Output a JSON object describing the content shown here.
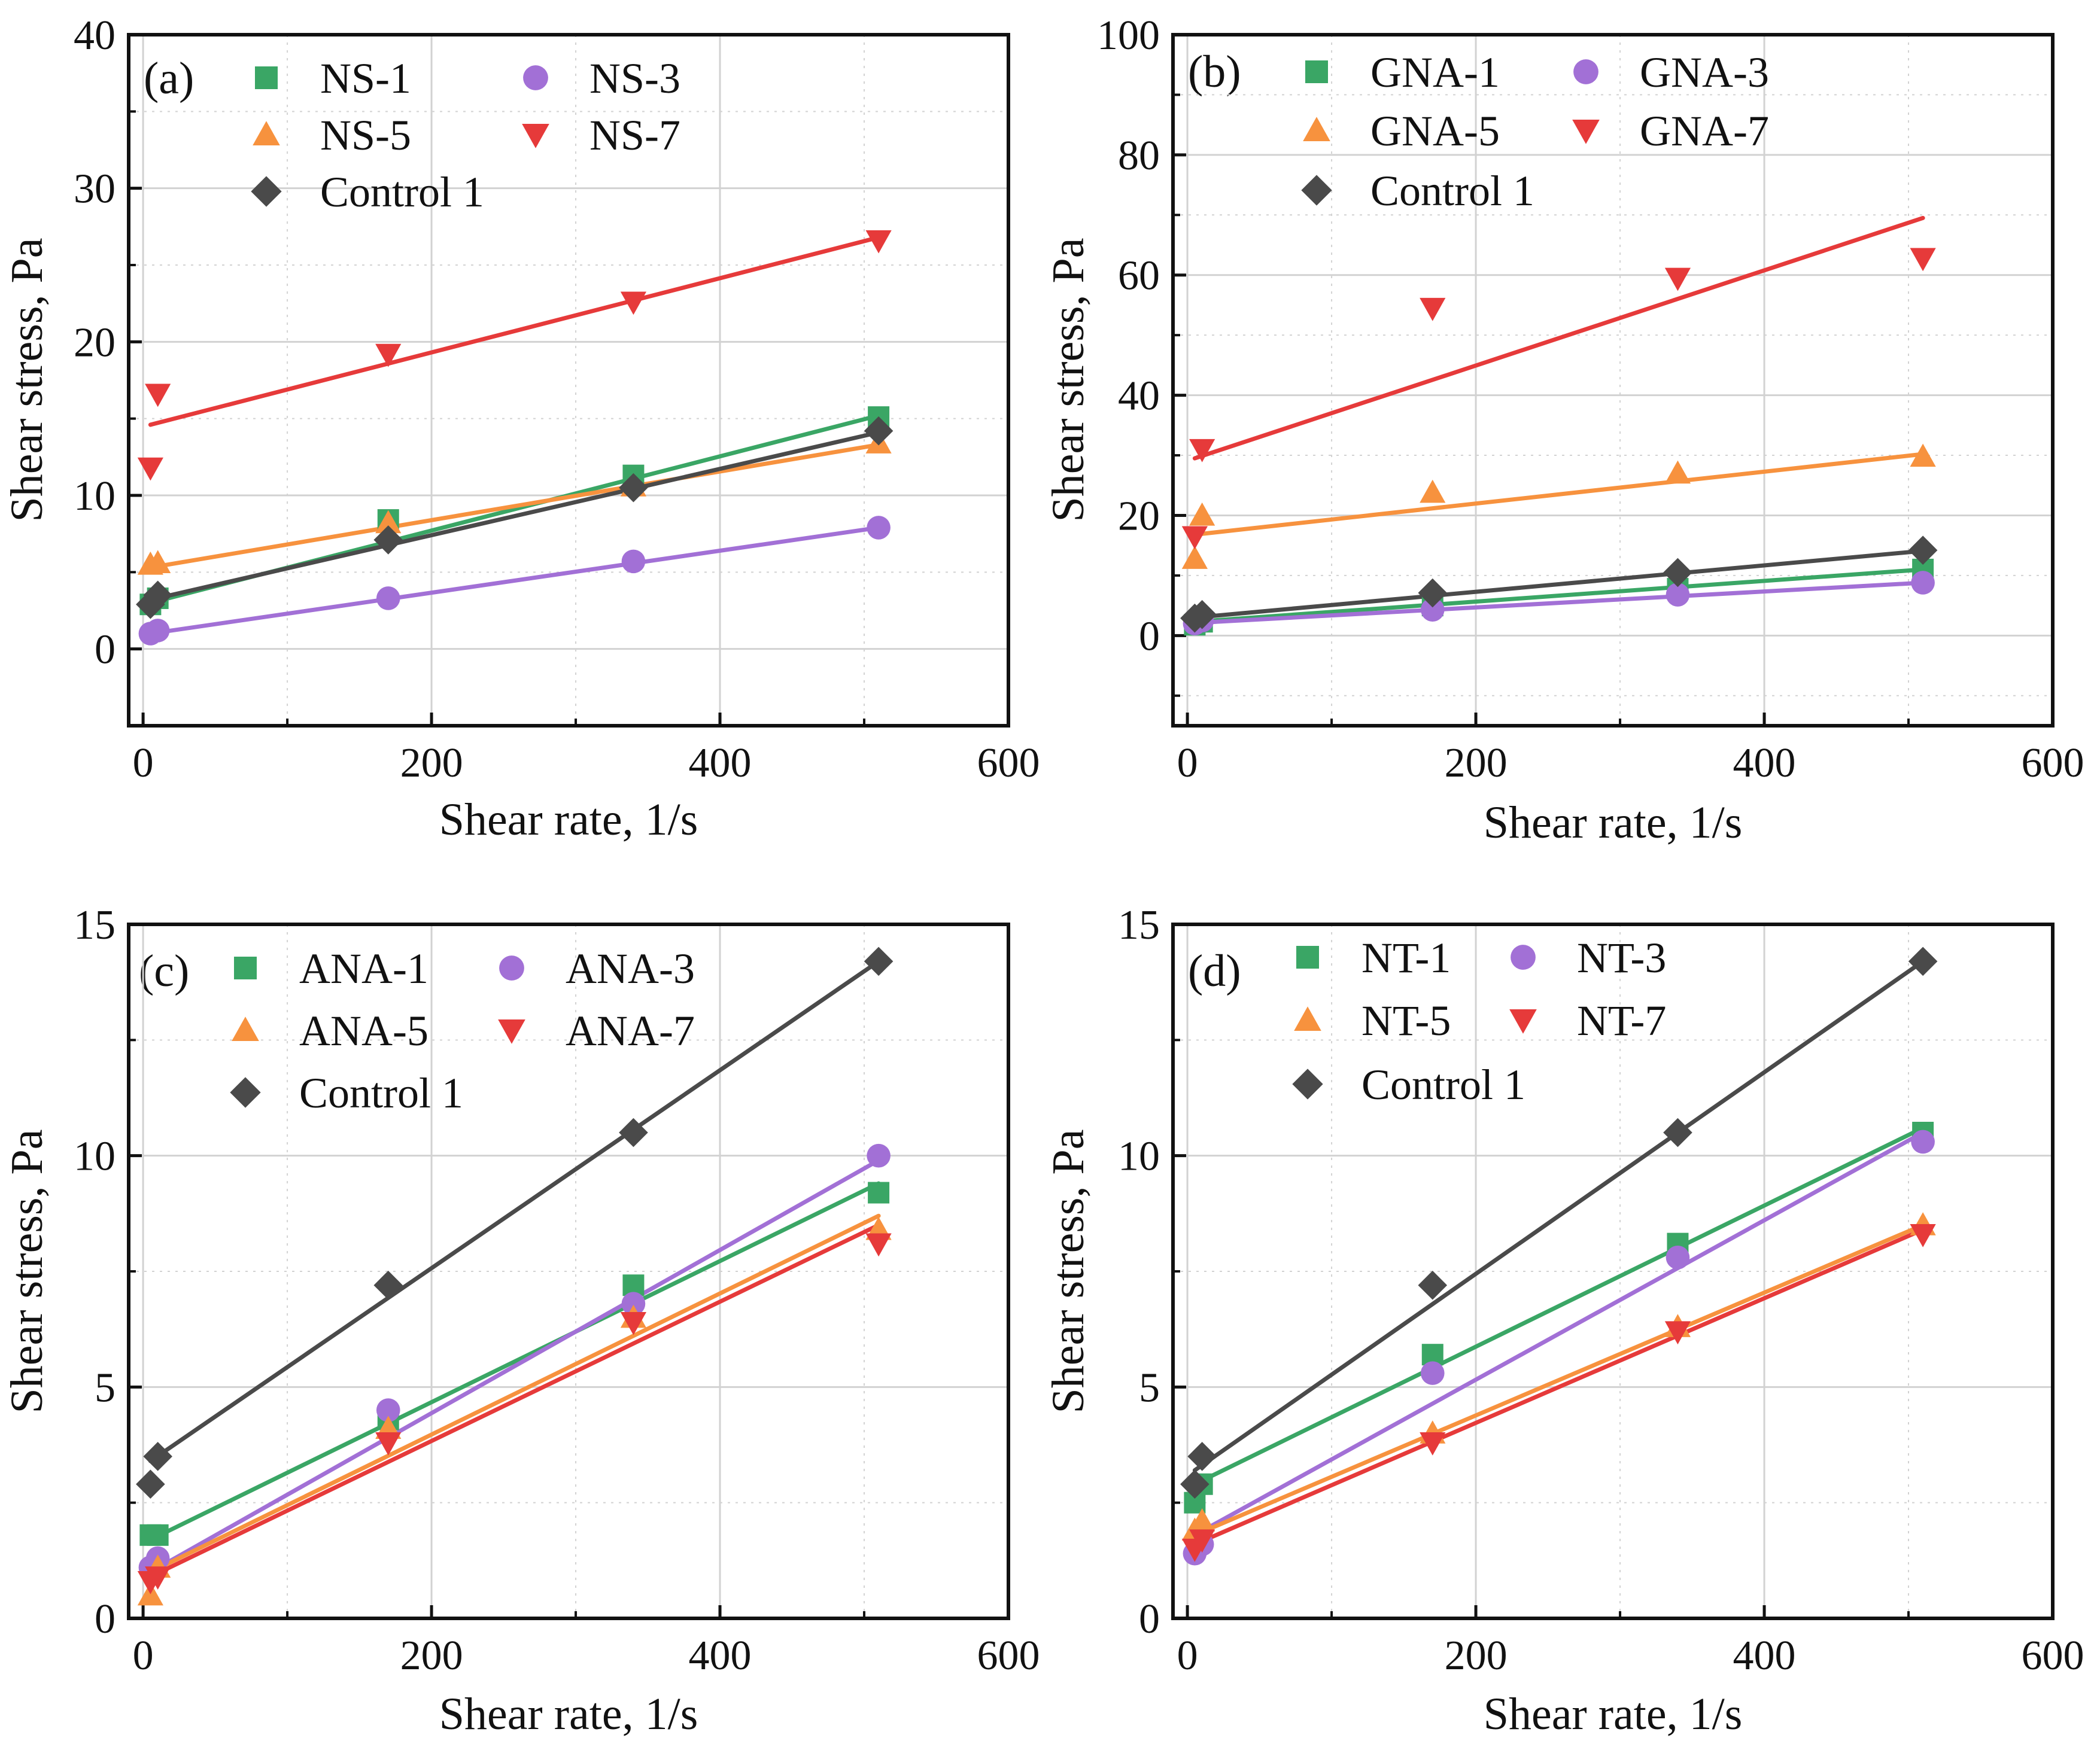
{
  "chart_data": [
    {
      "type": "scatter",
      "panel_label": "(a)",
      "xlabel": "Shear rate, 1/s",
      "ylabel": "Shear stress, Pa",
      "xlim": [
        -10,
        600
      ],
      "ylim": [
        -5,
        40
      ],
      "xticks": [
        0,
        200,
        400,
        600
      ],
      "xtick_labels": [
        "0",
        "200",
        "400",
        "600"
      ],
      "yticks": [
        0,
        10,
        20,
        30,
        40
      ],
      "ytick_labels": [
        "0",
        "10",
        "20",
        "30",
        "40"
      ],
      "grid": true,
      "series": [
        {
          "name": "NS-1",
          "marker": "square",
          "color": "#3aa665",
          "x": [
            5.1,
            10.2,
            170,
            340,
            510
          ],
          "y": [
            2.9,
            3.3,
            8.4,
            11.3,
            15.1
          ],
          "fit": [
            3.0,
            15.2
          ]
        },
        {
          "name": "NS-3",
          "marker": "circle",
          "color": "#a270d6",
          "x": [
            5.1,
            10.2,
            170,
            340,
            510
          ],
          "y": [
            1.0,
            1.2,
            3.3,
            5.7,
            7.9
          ],
          "fit": [
            1.0,
            7.9
          ]
        },
        {
          "name": "NS-5",
          "marker": "triangle-up",
          "color": "#f7923e",
          "x": [
            5.1,
            10.2,
            170,
            340,
            510
          ],
          "y": [
            5.5,
            5.6,
            8.2,
            10.6,
            13.4
          ],
          "fit": [
            5.3,
            13.3
          ]
        },
        {
          "name": "NS-7",
          "marker": "triangle-down",
          "color": "#e63a3a",
          "x": [
            5.1,
            10.2,
            170,
            340,
            510
          ],
          "y": [
            11.8,
            16.6,
            19.2,
            22.6,
            26.6
          ],
          "fit": [
            14.6,
            26.8
          ]
        },
        {
          "name": "Control 1",
          "marker": "diamond",
          "color": "#4a4a4a",
          "x": [
            5.1,
            10.2,
            170,
            340,
            510
          ],
          "y": [
            2.9,
            3.5,
            7.1,
            10.5,
            14.2
          ],
          "fit": [
            3.2,
            14.1
          ]
        }
      ]
    },
    {
      "type": "scatter",
      "panel_label": "(b)",
      "xlabel": "Shear rate, 1/s",
      "ylabel": "Shear stress, Pa",
      "xlim": [
        -10,
        600
      ],
      "ylim": [
        -15,
        100
      ],
      "xticks": [
        0,
        200,
        400,
        600
      ],
      "xtick_labels": [
        "0",
        "200",
        "400",
        "600"
      ],
      "yticks": [
        0,
        20,
        40,
        60,
        80,
        100
      ],
      "ytick_labels": [
        "0",
        "20",
        "40",
        "60",
        "80",
        "100"
      ],
      "grid": true,
      "series": [
        {
          "name": "GNA-1",
          "marker": "square",
          "color": "#3aa665",
          "x": [
            5.1,
            10.2,
            170,
            340,
            510
          ],
          "y": [
            1.8,
            2.3,
            5.0,
            7.8,
            11.0
          ],
          "fit": [
            2.3,
            11.0
          ]
        },
        {
          "name": "GNA-3",
          "marker": "circle",
          "color": "#a270d6",
          "x": [
            5.1,
            10.2,
            170,
            340,
            510
          ],
          "y": [
            2.0,
            2.5,
            4.3,
            6.8,
            8.8
          ],
          "fit": [
            2.1,
            8.8
          ]
        },
        {
          "name": "GNA-5",
          "marker": "triangle-up",
          "color": "#f7923e",
          "x": [
            5.1,
            10.2,
            170,
            340,
            510
          ],
          "y": [
            12.8,
            20.0,
            23.8,
            27.0,
            29.8
          ],
          "fit": [
            16.8,
            30.2
          ]
        },
        {
          "name": "GNA-7",
          "marker": "triangle-down",
          "color": "#e63a3a",
          "x": [
            5.1,
            10.2,
            170,
            340,
            510
          ],
          "y": [
            16.5,
            31.0,
            54.5,
            59.5,
            62.8
          ],
          "fit": [
            29.5,
            69.5
          ]
        },
        {
          "name": "Control 1",
          "marker": "diamond",
          "color": "#4a4a4a",
          "x": [
            5.1,
            10.2,
            170,
            340,
            510
          ],
          "y": [
            2.9,
            3.5,
            7.1,
            10.5,
            14.2
          ],
          "fit": [
            3.0,
            14.1
          ]
        }
      ]
    },
    {
      "type": "scatter",
      "panel_label": "(c)",
      "xlabel": "Shear rate, 1/s",
      "ylabel": "Shear stress, Pa",
      "xlim": [
        -10,
        600
      ],
      "ylim": [
        0,
        15
      ],
      "xticks": [
        0,
        200,
        400,
        600
      ],
      "xtick_labels": [
        "0",
        "200",
        "400",
        "600"
      ],
      "yticks": [
        0,
        5,
        10,
        15
      ],
      "ytick_labels": [
        "0",
        "5",
        "10",
        "15"
      ],
      "grid": true,
      "series": [
        {
          "name": "ANA-1",
          "marker": "square",
          "color": "#3aa665",
          "x": [
            5.1,
            10.2,
            170,
            340,
            510
          ],
          "y": [
            1.8,
            1.8,
            4.3,
            7.2,
            9.2
          ],
          "fit": [
            1.7,
            9.4
          ]
        },
        {
          "name": "ANA-3",
          "marker": "circle",
          "color": "#a270d6",
          "x": [
            5.1,
            10.2,
            170,
            340,
            510
          ],
          "y": [
            1.1,
            1.3,
            4.5,
            6.8,
            10.0
          ],
          "fit": [
            1.0,
            9.9
          ]
        },
        {
          "name": "ANA-5",
          "marker": "triangle-up",
          "color": "#f7923e",
          "x": [
            5.1,
            10.2,
            170,
            340,
            510
          ],
          "y": [
            0.5,
            1.1,
            4.1,
            6.5,
            8.4
          ],
          "fit": [
            1.0,
            8.7
          ]
        },
        {
          "name": "ANA-7",
          "marker": "triangle-down",
          "color": "#e63a3a",
          "x": [
            5.1,
            10.2,
            170,
            340,
            510
          ],
          "y": [
            0.8,
            0.9,
            3.8,
            6.4,
            8.1
          ],
          "fit": [
            0.9,
            8.5
          ]
        },
        {
          "name": "Control 1",
          "marker": "diamond",
          "color": "#4a4a4a",
          "x": [
            5.1,
            10.2,
            170,
            340,
            510
          ],
          "y": [
            2.9,
            3.5,
            7.2,
            10.5,
            14.2
          ],
          "fit": [
            3.4,
            14.2
          ]
        }
      ]
    },
    {
      "type": "scatter",
      "panel_label": "(d)",
      "xlabel": "Shear rate, 1/s",
      "ylabel": "Shear stress, Pa",
      "xlim": [
        -10,
        600
      ],
      "ylim": [
        0,
        15
      ],
      "xticks": [
        0,
        200,
        400,
        600
      ],
      "xtick_labels": [
        "0",
        "200",
        "400",
        "600"
      ],
      "yticks": [
        0,
        5,
        10,
        15
      ],
      "ytick_labels": [
        "0",
        "5",
        "10",
        "15"
      ],
      "grid": true,
      "series": [
        {
          "name": "NT-1",
          "marker": "square",
          "color": "#3aa665",
          "x": [
            5.1,
            10.2,
            170,
            340,
            510
          ],
          "y": [
            2.5,
            2.9,
            5.7,
            8.1,
            10.5
          ],
          "fit": [
            2.9,
            10.6
          ]
        },
        {
          "name": "NT-3",
          "marker": "circle",
          "color": "#a270d6",
          "x": [
            5.1,
            10.2,
            170,
            340,
            510
          ],
          "y": [
            1.4,
            1.6,
            5.3,
            7.8,
            10.3
          ],
          "fit": [
            1.8,
            10.5
          ]
        },
        {
          "name": "NT-5",
          "marker": "triangle-up",
          "color": "#f7923e",
          "x": [
            5.1,
            10.2,
            170,
            340,
            510
          ],
          "y": [
            1.9,
            2.1,
            4.0,
            6.3,
            8.5
          ],
          "fit": [
            1.8,
            8.5
          ]
        },
        {
          "name": "NT-7",
          "marker": "triangle-down",
          "color": "#e63a3a",
          "x": [
            5.1,
            10.2,
            170,
            340,
            510
          ],
          "y": [
            1.5,
            1.7,
            3.8,
            6.2,
            8.3
          ],
          "fit": [
            1.6,
            8.4
          ]
        },
        {
          "name": "Control 1",
          "marker": "diamond",
          "color": "#4a4a4a",
          "x": [
            5.1,
            10.2,
            170,
            340,
            510
          ],
          "y": [
            2.9,
            3.5,
            7.2,
            10.5,
            14.2
          ],
          "fit": [
            3.2,
            14.2
          ]
        }
      ]
    }
  ]
}
